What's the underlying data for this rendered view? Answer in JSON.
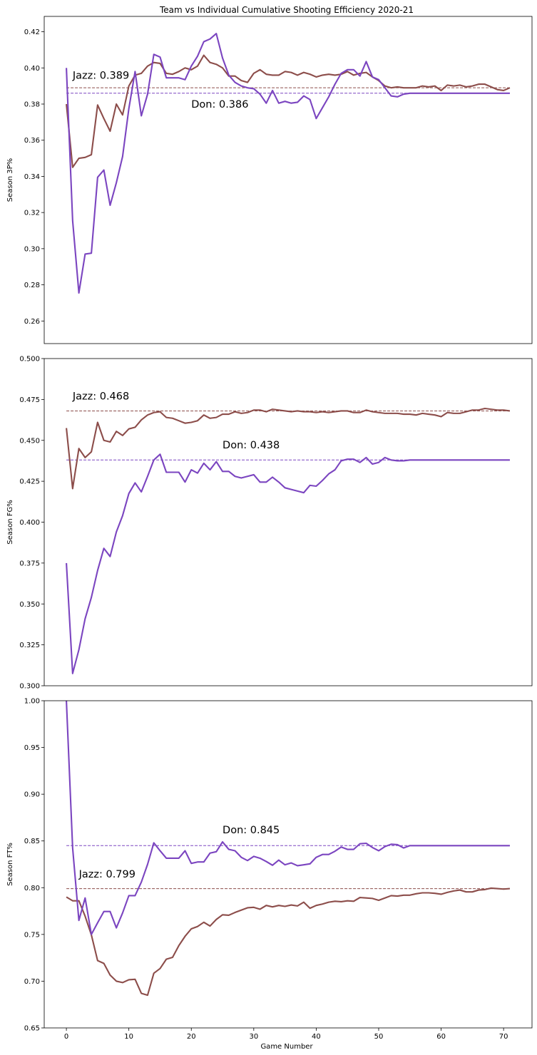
{
  "chart_data": {
    "title": "Team vs Individual Cumulative Shooting Efficiency 2020-21",
    "xlabel": "Game Number",
    "type": "line",
    "xlim": [
      -3.55,
      74.55
    ],
    "xticks": [
      0,
      10,
      20,
      30,
      40,
      50,
      60,
      70
    ],
    "colors": {
      "Jazz": "#8c4d4a",
      "Don": "#7b45c0"
    },
    "panels": [
      {
        "ylabel": "Season 3P%",
        "ylim": [
          0.2475,
          0.4285
        ],
        "yticks": [
          0.26,
          0.28,
          0.3,
          0.32,
          0.34,
          0.36,
          0.38,
          0.4,
          0.42
        ],
        "tick_labels": [
          "0.26",
          "0.28",
          "0.30",
          "0.32",
          "0.34",
          "0.36",
          "0.38",
          "0.40",
          "0.42"
        ],
        "annotations": [
          {
            "text": "Jazz: 0.389",
            "series": "Jazz",
            "x": 1,
            "y": 0.394
          },
          {
            "text": "Don: 0.386",
            "series": "Don",
            "x": 20,
            "y": 0.378
          }
        ],
        "series": [
          {
            "name": "Jazz",
            "mean": 0.389,
            "values": [
              0.38,
              0.345,
              0.35,
              0.3505,
              0.352,
              0.3795,
              0.372,
              0.365,
              0.38,
              0.374,
              0.39,
              0.396,
              0.397,
              0.401,
              0.403,
              0.4025,
              0.397,
              0.3965,
              0.398,
              0.4,
              0.399,
              0.401,
              0.407,
              0.403,
              0.402,
              0.4,
              0.3955,
              0.3955,
              0.393,
              0.392,
              0.397,
              0.399,
              0.3965,
              0.396,
              0.396,
              0.398,
              0.3975,
              0.396,
              0.3975,
              0.3965,
              0.395,
              0.396,
              0.3965,
              0.396,
              0.3965,
              0.398,
              0.396,
              0.397,
              0.3975,
              0.395,
              0.393,
              0.39,
              0.389,
              0.3895,
              0.389,
              0.389,
              0.389,
              0.39,
              0.3895,
              0.39,
              0.3875,
              0.3905,
              0.39,
              0.3905,
              0.3895,
              0.39,
              0.391,
              0.391,
              0.3895,
              0.388,
              0.3875,
              0.389
            ]
          },
          {
            "name": "Don",
            "mean": 0.386,
            "values": [
              0.4,
              0.3155,
              0.2755,
              0.297,
              0.2975,
              0.3395,
              0.3435,
              0.324,
              0.3365,
              0.351,
              0.3775,
              0.398,
              0.3735,
              0.3855,
              0.4075,
              0.406,
              0.3945,
              0.3945,
              0.3945,
              0.3935,
              0.401,
              0.4065,
              0.4145,
              0.416,
              0.419,
              0.4055,
              0.396,
              0.392,
              0.39,
              0.389,
              0.3885,
              0.3855,
              0.3805,
              0.3875,
              0.3805,
              0.3815,
              0.3805,
              0.381,
              0.3845,
              0.3825,
              0.372,
              0.378,
              0.384,
              0.391,
              0.397,
              0.399,
              0.399,
              0.3955,
              0.4035,
              0.395,
              0.3935,
              0.389,
              0.3845,
              0.384,
              0.3855,
              0.386,
              0.386,
              0.386,
              0.386,
              0.386,
              0.386,
              0.386,
              0.386,
              0.386,
              0.386,
              0.386,
              0.386,
              0.386,
              0.386,
              0.386,
              0.386,
              0.386
            ]
          }
        ]
      },
      {
        "ylabel": "Season FG%",
        "ylim": [
          0.3,
          0.5
        ],
        "yticks": [
          0.3,
          0.325,
          0.35,
          0.375,
          0.4,
          0.425,
          0.45,
          0.475,
          0.5
        ],
        "tick_labels": [
          "0.300",
          "0.325",
          "0.350",
          "0.375",
          "0.400",
          "0.425",
          "0.450",
          "0.475",
          "0.500"
        ],
        "annotations": [
          {
            "text": "Jazz: 0.468",
            "series": "Jazz",
            "x": 1,
            "y": 0.475
          },
          {
            "text": "Don: 0.438",
            "series": "Don",
            "x": 25,
            "y": 0.445
          }
        ],
        "series": [
          {
            "name": "Jazz",
            "mean": 0.468,
            "values": [
              0.4575,
              0.4205,
              0.445,
              0.4395,
              0.443,
              0.461,
              0.45,
              0.449,
              0.4555,
              0.453,
              0.457,
              0.458,
              0.4625,
              0.4655,
              0.467,
              0.4675,
              0.464,
              0.4635,
              0.462,
              0.4605,
              0.461,
              0.462,
              0.4655,
              0.4635,
              0.464,
              0.466,
              0.466,
              0.4675,
              0.4665,
              0.467,
              0.4685,
              0.4685,
              0.4675,
              0.469,
              0.4685,
              0.468,
              0.4675,
              0.468,
              0.4675,
              0.4675,
              0.467,
              0.4675,
              0.467,
              0.4675,
              0.468,
              0.468,
              0.467,
              0.467,
              0.4685,
              0.4675,
              0.467,
              0.4665,
              0.4665,
              0.4665,
              0.466,
              0.466,
              0.4655,
              0.4665,
              0.466,
              0.4655,
              0.4645,
              0.467,
              0.4665,
              0.4665,
              0.4675,
              0.4685,
              0.4685,
              0.4695,
              0.469,
              0.4685,
              0.4685,
              0.468
            ]
          },
          {
            "name": "Don",
            "mean": 0.438,
            "values": [
              0.375,
              0.3075,
              0.322,
              0.341,
              0.354,
              0.3705,
              0.384,
              0.379,
              0.394,
              0.404,
              0.4175,
              0.424,
              0.4185,
              0.428,
              0.438,
              0.4415,
              0.4305,
              0.4305,
              0.4305,
              0.4245,
              0.432,
              0.43,
              0.436,
              0.432,
              0.437,
              0.431,
              0.431,
              0.428,
              0.427,
              0.428,
              0.429,
              0.4245,
              0.4245,
              0.4275,
              0.4245,
              0.421,
              0.42,
              0.419,
              0.418,
              0.4225,
              0.422,
              0.4255,
              0.4295,
              0.432,
              0.4375,
              0.4385,
              0.4385,
              0.4365,
              0.4395,
              0.4355,
              0.4365,
              0.4395,
              0.438,
              0.4375,
              0.4375,
              0.438,
              0.438,
              0.438,
              0.438,
              0.438,
              0.438,
              0.438,
              0.438,
              0.438,
              0.438,
              0.438,
              0.438,
              0.438,
              0.438,
              0.438,
              0.438,
              0.438
            ]
          }
        ]
      },
      {
        "ylabel": "Season FT%",
        "ylim": [
          0.65,
          1.0
        ],
        "yticks": [
          0.65,
          0.7,
          0.75,
          0.8,
          0.85,
          0.9,
          0.95,
          1.0
        ],
        "tick_labels": [
          "0.65",
          "0.70",
          "0.75",
          "0.80",
          "0.85",
          "0.90",
          "0.95",
          "1.00"
        ],
        "annotations": [
          {
            "text": "Jazz: 0.799",
            "series": "Jazz",
            "x": 2,
            "y": 0.811
          },
          {
            "text": "Don: 0.845",
            "series": "Don",
            "x": 25,
            "y": 0.858
          }
        ],
        "series": [
          {
            "name": "Jazz",
            "mean": 0.799,
            "values": [
              0.79,
              0.786,
              0.786,
              0.7695,
              0.7495,
              0.722,
              0.719,
              0.7065,
              0.7,
              0.6985,
              0.7015,
              0.702,
              0.687,
              0.685,
              0.7085,
              0.7135,
              0.7235,
              0.7255,
              0.738,
              0.748,
              0.756,
              0.7585,
              0.763,
              0.759,
              0.766,
              0.771,
              0.7705,
              0.7735,
              0.776,
              0.7785,
              0.779,
              0.777,
              0.781,
              0.7795,
              0.781,
              0.78,
              0.7815,
              0.7805,
              0.7845,
              0.778,
              0.781,
              0.7825,
              0.7845,
              0.7855,
              0.785,
              0.786,
              0.7855,
              0.7895,
              0.789,
              0.7885,
              0.7865,
              0.789,
              0.7915,
              0.791,
              0.792,
              0.792,
              0.7935,
              0.7945,
              0.7945,
              0.794,
              0.793,
              0.795,
              0.7965,
              0.7975,
              0.7955,
              0.7955,
              0.7975,
              0.798,
              0.7995,
              0.799,
              0.7985,
              0.799
            ]
          },
          {
            "name": "Don",
            "mean": 0.845,
            "values": [
              1.0,
              0.8425,
              0.765,
              0.789,
              0.75,
              0.7625,
              0.7745,
              0.7745,
              0.757,
              0.773,
              0.7915,
              0.7915,
              0.806,
              0.825,
              0.848,
              0.8395,
              0.8315,
              0.8315,
              0.8315,
              0.8395,
              0.826,
              0.8275,
              0.8275,
              0.837,
              0.8385,
              0.849,
              0.841,
              0.8395,
              0.8325,
              0.829,
              0.8335,
              0.8315,
              0.828,
              0.824,
              0.8295,
              0.8245,
              0.8265,
              0.8235,
              0.8245,
              0.8255,
              0.8325,
              0.8355,
              0.8355,
              0.839,
              0.8435,
              0.841,
              0.841,
              0.847,
              0.8475,
              0.843,
              0.8395,
              0.844,
              0.8465,
              0.846,
              0.8425,
              0.845,
              0.845,
              0.845,
              0.845,
              0.845,
              0.845,
              0.845,
              0.845,
              0.845,
              0.845,
              0.845,
              0.845,
              0.845,
              0.845,
              0.845,
              0.845,
              0.845
            ]
          }
        ]
      }
    ]
  }
}
